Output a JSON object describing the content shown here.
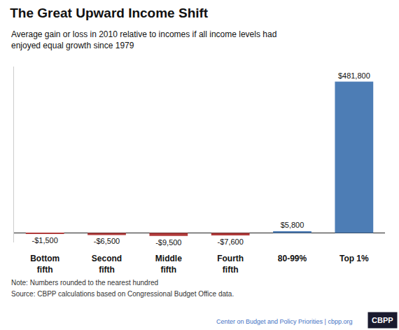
{
  "chart_data": {
    "type": "bar",
    "title": "The Great Upward Income Shift",
    "subtitle": "Average gain or loss in 2010 relative to incomes if all income levels had\nenjoyed equal growth since 1979",
    "categories": [
      "Bottom\nfifth",
      "Second\nfifth",
      "Middle\nfifth",
      "Fourth\nfifth",
      "80-99%",
      "Top 1%"
    ],
    "values": [
      -1500,
      -6500,
      -9500,
      -7600,
      5800,
      481800
    ],
    "value_labels": [
      "-$1,500",
      "-$6,500",
      "-$9,500",
      "-$7,600",
      "$5,800",
      "$481,800"
    ],
    "colors": [
      "#B03A3A",
      "#B03A3A",
      "#B03A3A",
      "#B03A3A",
      "#4D7DB5",
      "#4D7DB5"
    ],
    "ylim": [
      -30000,
      530000
    ],
    "data_labels": true,
    "tick_labels": "x",
    "grid": false,
    "annotations": [
      "Note: Numbers rounded to the nearest hundred",
      "Source: CBPP calculations based on Congressional Budget Office data.",
      "Center on Budget and Policy Priorities | cbpp.org",
      "CBPP"
    ]
  }
}
